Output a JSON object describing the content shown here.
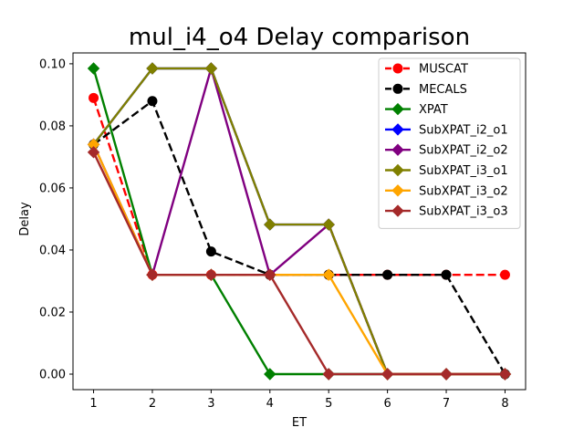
{
  "chart_data": {
    "type": "line",
    "title": "mul_i4_o4 Delay comparison",
    "xlabel": "ET",
    "ylabel": "Delay",
    "xlim": [
      0.65,
      8.35
    ],
    "ylim": [
      -0.005,
      0.1035
    ],
    "xticks": [
      "1",
      "2",
      "3",
      "4",
      "5",
      "6",
      "7",
      "8"
    ],
    "yticks": [
      "0.00",
      "0.02",
      "0.04",
      "0.06",
      "0.08",
      "0.10"
    ],
    "grid": false,
    "legend": "top-right",
    "series": [
      {
        "name": "MUSCAT",
        "color": "#ff0000",
        "marker": "circle",
        "dash": true,
        "x": [
          1,
          2,
          3,
          4,
          5,
          6,
          7,
          8
        ],
        "y": [
          0.089,
          0.032,
          0.032,
          0.032,
          0.032,
          0.032,
          0.032,
          0.032
        ]
      },
      {
        "name": "MECALS",
        "color": "#000000",
        "marker": "circle",
        "dash": true,
        "x": [
          1,
          2,
          3,
          4,
          5,
          6,
          7,
          8
        ],
        "y": [
          0.074,
          0.088,
          0.0395,
          0.032,
          0.032,
          0.032,
          0.032,
          0.0
        ]
      },
      {
        "name": "XPAT",
        "color": "#008000",
        "marker": "diamond",
        "dash": false,
        "x": [
          1,
          2,
          3,
          4,
          5,
          6,
          7,
          8
        ],
        "y": [
          0.0985,
          0.032,
          0.032,
          0.0,
          0.0,
          0.0,
          0.0,
          0.0
        ]
      },
      {
        "name": "SubXPAT_i2_o1",
        "color": "#0000ff",
        "marker": "diamond",
        "dash": false,
        "x": [
          1,
          2,
          3,
          4,
          5,
          6,
          7,
          8
        ],
        "y": [
          0.074,
          0.0985,
          0.0985,
          0.0482,
          0.0482,
          0.0,
          0.0,
          0.0
        ]
      },
      {
        "name": "SubXPAT_i2_o2",
        "color": "#800080",
        "marker": "diamond",
        "dash": false,
        "x": [
          1,
          2,
          3,
          4,
          5,
          6,
          7,
          8
        ],
        "y": [
          0.074,
          0.032,
          0.0985,
          0.032,
          0.0482,
          0.0,
          0.0,
          0.0
        ]
      },
      {
        "name": "SubXPAT_i3_o1",
        "color": "#808000",
        "marker": "diamond",
        "dash": false,
        "x": [
          1,
          2,
          3,
          4,
          5,
          6,
          7,
          8
        ],
        "y": [
          0.074,
          0.0985,
          0.0985,
          0.0482,
          0.0482,
          0.0,
          0.0,
          0.0
        ]
      },
      {
        "name": "SubXPAT_i3_o2",
        "color": "#ffa500",
        "marker": "diamond",
        "dash": false,
        "x": [
          1,
          2,
          3,
          4,
          5,
          6,
          7,
          8
        ],
        "y": [
          0.074,
          0.032,
          0.032,
          0.032,
          0.032,
          0.0,
          0.0,
          0.0
        ]
      },
      {
        "name": "SubXPAT_i3_o3",
        "color": "#a52a2a",
        "marker": "diamond",
        "dash": false,
        "x": [
          1,
          2,
          3,
          4,
          5,
          6,
          7,
          8
        ],
        "y": [
          0.0715,
          0.032,
          0.032,
          0.032,
          0.0,
          0.0,
          0.0,
          0.0
        ]
      }
    ]
  }
}
